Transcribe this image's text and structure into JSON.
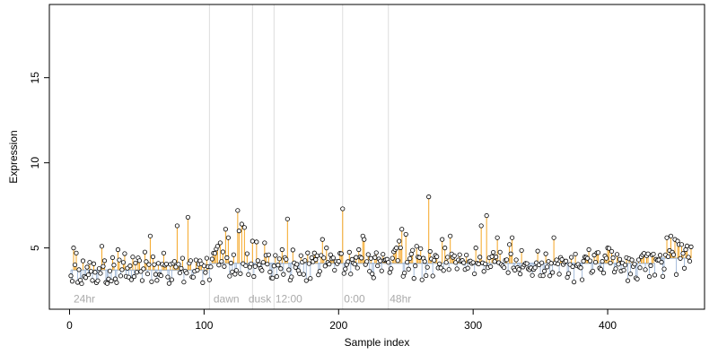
{
  "chart_data": {
    "type": "scatter",
    "xlabel": "Sample index",
    "ylabel": "Expression",
    "xlim": [
      -15,
      472
    ],
    "ylim": [
      1.4,
      19.3
    ],
    "x_ticks": [
      0,
      100,
      200,
      300,
      400
    ],
    "y_ticks": [
      5,
      10,
      15
    ],
    "grid": false,
    "baseline_segments": [
      {
        "start": 1,
        "end": 103,
        "level": 3.7
      },
      {
        "start": 104,
        "end": 435,
        "level": 4.1
      },
      {
        "start": 436,
        "end": 462,
        "level": 4.4
      }
    ],
    "section_dividers": [
      104,
      136,
      152,
      203,
      237
    ],
    "section_labels": [
      {
        "text": "24hr",
        "x": 3
      },
      {
        "text": "dawn",
        "x": 107
      },
      {
        "text": "dusk",
        "x": 133
      },
      {
        "text": "12:00",
        "x": 153
      },
      {
        "text": "0:00",
        "x": 204
      },
      {
        "text": "48hr",
        "x": 238
      }
    ],
    "annotation_y": 2.0,
    "colors": {
      "above_baseline": "#f5a623",
      "below_baseline": "#a6bddb",
      "point_stroke": "#000000",
      "divider": "#dddddd",
      "baseline": "#a6bddb",
      "annotation_text": "#aaaaaa"
    },
    "seed": 20240517,
    "spikes": [
      {
        "x": 3,
        "y": 5.0
      },
      {
        "x": 5,
        "y": 4.7
      },
      {
        "x": 24,
        "y": 5.1
      },
      {
        "x": 36,
        "y": 4.9
      },
      {
        "x": 60,
        "y": 5.7
      },
      {
        "x": 70,
        "y": 4.7
      },
      {
        "x": 80,
        "y": 6.3
      },
      {
        "x": 88,
        "y": 6.8
      },
      {
        "x": 110,
        "y": 5.1
      },
      {
        "x": 112,
        "y": 5.3
      },
      {
        "x": 116,
        "y": 6.1
      },
      {
        "x": 118,
        "y": 5.6
      },
      {
        "x": 122,
        "y": 4.6
      },
      {
        "x": 125,
        "y": 7.2
      },
      {
        "x": 126,
        "y": 6.0
      },
      {
        "x": 128,
        "y": 6.4
      },
      {
        "x": 130,
        "y": 6.2
      },
      {
        "x": 136,
        "y": 5.4
      },
      {
        "x": 145,
        "y": 5.3
      },
      {
        "x": 158,
        "y": 4.9
      },
      {
        "x": 162,
        "y": 6.7
      },
      {
        "x": 188,
        "y": 5.5
      },
      {
        "x": 191,
        "y": 5.0
      },
      {
        "x": 203,
        "y": 7.3
      },
      {
        "x": 215,
        "y": 4.9
      },
      {
        "x": 218,
        "y": 5.7
      },
      {
        "x": 219,
        "y": 5.5
      },
      {
        "x": 243,
        "y": 5.0
      },
      {
        "x": 245,
        "y": 5.4
      },
      {
        "x": 247,
        "y": 6.1
      },
      {
        "x": 250,
        "y": 5.8
      },
      {
        "x": 258,
        "y": 5.1
      },
      {
        "x": 267,
        "y": 8.0
      },
      {
        "x": 277,
        "y": 5.5
      },
      {
        "x": 279,
        "y": 5.0
      },
      {
        "x": 283,
        "y": 5.7
      },
      {
        "x": 290,
        "y": 4.6
      },
      {
        "x": 302,
        "y": 5.0
      },
      {
        "x": 306,
        "y": 6.3
      },
      {
        "x": 310,
        "y": 6.9
      },
      {
        "x": 318,
        "y": 5.6
      },
      {
        "x": 327,
        "y": 5.2
      },
      {
        "x": 329,
        "y": 5.6
      },
      {
        "x": 360,
        "y": 5.6
      },
      {
        "x": 386,
        "y": 4.9
      },
      {
        "x": 400,
        "y": 5.0
      },
      {
        "x": 403,
        "y": 4.8
      },
      {
        "x": 444,
        "y": 5.6
      },
      {
        "x": 447,
        "y": 5.7
      },
      {
        "x": 450,
        "y": 5.5
      },
      {
        "x": 452,
        "y": 5.4
      },
      {
        "x": 455,
        "y": 5.2
      },
      {
        "x": 458,
        "y": 4.9
      }
    ]
  }
}
